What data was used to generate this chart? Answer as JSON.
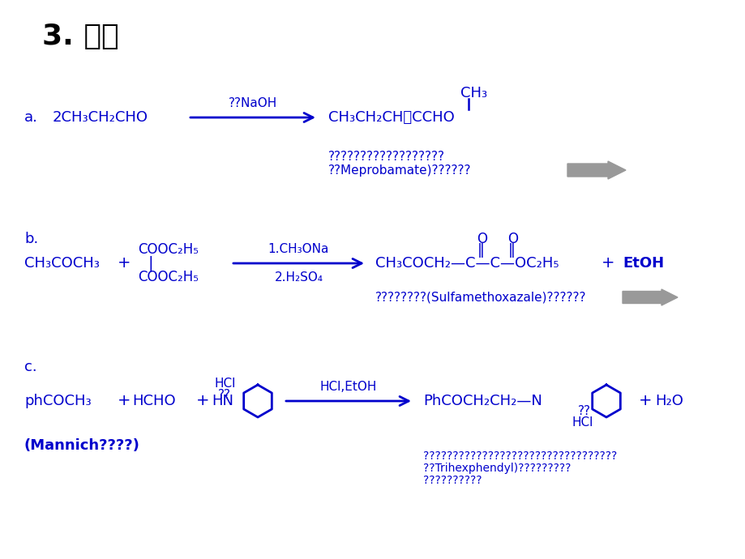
{
  "background_color": "#ffffff",
  "text_color": "#0000cc",
  "title_color": "#000000",
  "title": "3. 应用",
  "a_label": "a.",
  "a_reactant": "2CH₃CH₂CHO",
  "a_arrow_label": "??NaOH",
  "a_ch3_top": "CH₃",
  "a_product": "CH₃CH₂CH＝CCHO",
  "a_note1": "??????????????????",
  "a_note2": "??Meprobamate)??????",
  "b_label": "b.",
  "b_reactant1": "CH₃COCH₃",
  "b_plus1": "+",
  "b_r2_top": "COOC₂H₅",
  "b_r2_bot": "COOC₂H₅",
  "b_arrow1": "1.CH₃ONa",
  "b_arrow2": "2.H₂SO₄",
  "b_O1": "O",
  "b_O2": "O",
  "b_product": "CH₃COCH₂—C—C—OC₂H₅",
  "b_plus2": "+",
  "b_byproduct": "EtOH",
  "b_note": "????????(Sulfamethoxazale)??????",
  "c_label": "c.",
  "c_r1": "phCOCH₃",
  "c_plus1": "+",
  "c_r2": "HCHO",
  "c_plus2": "+",
  "c_hcl": "HCl",
  "c_qq": "??",
  "c_hn": "HN",
  "c_arrow_label": "HCl,EtOH",
  "c_product": "PhCOCH₂CH₂—N",
  "c_sub1": "??",
  "c_sub2": "HCl",
  "c_plus3": "+",
  "c_byproduct": "H₂O",
  "c_mannich": "(Mannich????)",
  "c_note1": "?????????????????????????????????",
  "c_note2": "??Trihexphendyl)?????????",
  "c_note3": "??????????"
}
